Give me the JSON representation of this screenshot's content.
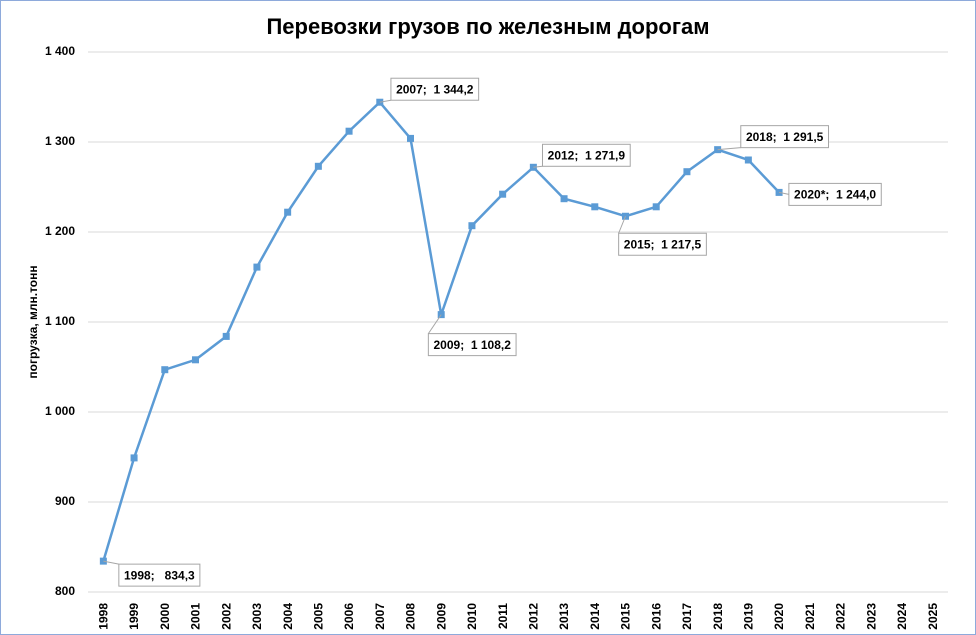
{
  "chart_data": {
    "type": "line",
    "title": "Перевозки грузов по железным дорогам",
    "ylabel": "погрузка, млн.тонн",
    "categories": [
      "1998",
      "1999",
      "2000",
      "2001",
      "2002",
      "2003",
      "2004",
      "2005",
      "2006",
      "2007",
      "2008",
      "2009",
      "2010",
      "2011",
      "2012",
      "2013",
      "2014",
      "2015",
      "2016",
      "2017",
      "2018",
      "2019",
      "2020",
      "2021",
      "2022",
      "2023",
      "2024",
      "2025"
    ],
    "series": [
      {
        "name": "погрузка",
        "color": "#5b9bd5",
        "values": [
          834.3,
          949,
          1047,
          1058,
          1084,
          1161,
          1222,
          1273,
          1312,
          1344.2,
          1304,
          1108.2,
          1207,
          1242,
          1271.9,
          1237,
          1228,
          1217.5,
          1228,
          1267,
          1291.5,
          1280,
          1244.0,
          null,
          null,
          null,
          null,
          null
        ],
        "value_labels": [
          "1998;   834,3",
          null,
          null,
          null,
          null,
          null,
          null,
          null,
          null,
          "2007;  1 344,2",
          null,
          "2009;  1 108,2",
          null,
          null,
          "2012;  1 271,9",
          null,
          null,
          "2015;  1 217,5",
          null,
          null,
          "2018;  1 291,5",
          null,
          "2020*;  1 244,0",
          null,
          null,
          null,
          null,
          null
        ]
      }
    ],
    "ylim": [
      800,
      1400
    ],
    "yticks": [
      800,
      900,
      {
        "value": 1000,
        "label": "1 000"
      },
      {
        "value": 1100,
        "label": "1 100"
      },
      {
        "value": 1200,
        "label": "1 200"
      },
      {
        "value": 1300,
        "label": "1 300"
      },
      {
        "value": 1400,
        "label": "1 400"
      }
    ],
    "grid": true
  }
}
